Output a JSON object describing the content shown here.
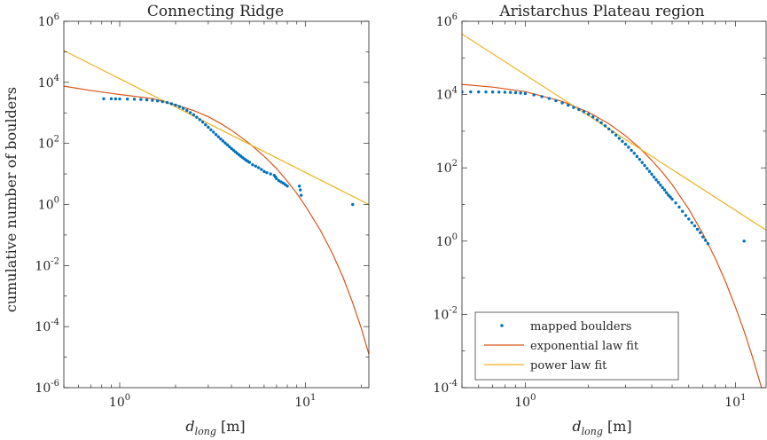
{
  "chart_data": [
    {
      "type": "scatter",
      "title": "Connecting Ridge",
      "xlabel_main": "d",
      "xlabel_sub": "long",
      "xlabel_unit": " [m]",
      "ylabel": "cumulative number of boulders",
      "xscale": "log",
      "yscale": "log",
      "xlim": [
        0.5,
        22
      ],
      "ylim": [
        1e-06,
        1000000.0
      ],
      "x_ticks": [
        {
          "base": "10",
          "exp": "0",
          "value": 1
        },
        {
          "base": "10",
          "exp": "1",
          "value": 10
        }
      ],
      "y_ticks": [
        {
          "base": "10",
          "exp": "6",
          "value": 1000000.0
        },
        {
          "base": "10",
          "exp": "4",
          "value": 10000.0
        },
        {
          "base": "10",
          "exp": "2",
          "value": 100.0
        },
        {
          "base": "10",
          "exp": "0",
          "value": 1
        },
        {
          "base": "10",
          "exp": "-2",
          "value": 0.01
        },
        {
          "base": "10",
          "exp": "-4",
          "value": 0.0001
        },
        {
          "base": "10",
          "exp": "-6",
          "value": 1e-06
        }
      ],
      "legend": false,
      "series": [
        {
          "name": "mapped boulders",
          "type": "scatter",
          "color": "#0072BD",
          "x": [
            0.82,
            0.9,
            0.95,
            1.0,
            1.1,
            1.2,
            1.3,
            1.4,
            1.5,
            1.6,
            1.7,
            1.8,
            1.9,
            2.0,
            2.1,
            2.2,
            2.3,
            2.4,
            2.5,
            2.6,
            2.7,
            2.8,
            2.9,
            3.0,
            3.1,
            3.2,
            3.3,
            3.4,
            3.5,
            3.6,
            3.7,
            3.8,
            3.9,
            4.0,
            4.1,
            4.2,
            4.3,
            4.4,
            4.5,
            4.6,
            4.7,
            4.8,
            4.9,
            5.0,
            5.2,
            5.4,
            5.6,
            5.8,
            6.0,
            6.2,
            6.5,
            6.8,
            6.9,
            7.0,
            7.2,
            7.4,
            7.6,
            7.8,
            8.0,
            9.3,
            9.4,
            9.5,
            18.0
          ],
          "y": [
            2900,
            2900,
            2880,
            2860,
            2840,
            2800,
            2740,
            2670,
            2580,
            2470,
            2330,
            2180,
            2000,
            1800,
            1600,
            1400,
            1200,
            1020,
            860,
            720,
            600,
            500,
            410,
            340,
            280,
            235,
            195,
            165,
            140,
            120,
            103,
            90,
            78,
            68,
            60,
            53,
            47,
            42,
            38,
            34,
            31,
            28,
            26,
            24,
            20,
            18,
            16,
            14,
            12,
            11,
            10,
            9,
            8,
            7,
            6,
            5.5,
            5,
            4.5,
            4,
            4,
            3,
            2,
            1
          ]
        },
        {
          "name": "exponential law fit",
          "type": "line",
          "color": "#D95319",
          "x": [
            0.5,
            0.7,
            1,
            1.5,
            2,
            2.5,
            3,
            3.5,
            4,
            5,
            6,
            7,
            8,
            9,
            10,
            12,
            14,
            16,
            18,
            20,
            22
          ],
          "y": [
            7500,
            5400,
            4000,
            2950,
            1850,
            1200,
            750,
            450,
            270,
            100,
            38,
            15,
            5.8,
            2.3,
            0.9,
            0.15,
            0.025,
            0.004,
            0.0006,
            9e-05,
            1.25e-05
          ]
        },
        {
          "name": "power law fit",
          "type": "line",
          "color": "#EDB120",
          "x": [
            0.5,
            22
          ],
          "y": [
            110000,
            1.0
          ]
        }
      ]
    },
    {
      "type": "scatter",
      "title": "Aristarchus Plateau region",
      "xlabel_main": "d",
      "xlabel_sub": "long",
      "xlabel_unit": " [m]",
      "ylabel": "",
      "xscale": "log",
      "yscale": "log",
      "xlim": [
        0.5,
        14
      ],
      "ylim": [
        0.0001,
        1000000.0
      ],
      "x_ticks": [
        {
          "base": "10",
          "exp": "0",
          "value": 1
        },
        {
          "base": "10",
          "exp": "1",
          "value": 10
        }
      ],
      "y_ticks": [
        {
          "base": "10",
          "exp": "6",
          "value": 1000000.0
        },
        {
          "base": "10",
          "exp": "4",
          "value": 10000.0
        },
        {
          "base": "10",
          "exp": "2",
          "value": 100.0
        },
        {
          "base": "10",
          "exp": "0",
          "value": 1
        },
        {
          "base": "10",
          "exp": "-2",
          "value": 0.01
        },
        {
          "base": "10",
          "exp": "-4",
          "value": 0.0001
        }
      ],
      "legend": true,
      "legend_position": "bottom-left",
      "legend_entries": [
        "mapped boulders",
        "exponential law fit",
        "power law fit"
      ],
      "series": [
        {
          "name": "mapped boulders",
          "type": "scatter",
          "color": "#0072BD",
          "x": [
            0.5,
            0.55,
            0.6,
            0.65,
            0.7,
            0.75,
            0.8,
            0.85,
            0.9,
            0.95,
            1.0,
            1.1,
            1.2,
            1.3,
            1.4,
            1.5,
            1.6,
            1.7,
            1.8,
            1.9,
            2.0,
            2.1,
            2.2,
            2.3,
            2.4,
            2.5,
            2.6,
            2.7,
            2.8,
            2.9,
            3.0,
            3.1,
            3.2,
            3.3,
            3.4,
            3.5,
            3.6,
            3.7,
            3.8,
            3.9,
            4.0,
            4.1,
            4.2,
            4.3,
            4.4,
            4.5,
            4.6,
            4.7,
            4.8,
            4.9,
            5.0,
            5.2,
            5.4,
            5.6,
            5.8,
            6.0,
            6.2,
            6.4,
            6.6,
            6.8,
            7.0,
            7.2,
            7.4,
            11.0
          ],
          "y": [
            11800,
            11800,
            11800,
            11780,
            11750,
            11700,
            11600,
            11450,
            11250,
            11000,
            10600,
            9800,
            8800,
            7800,
            6800,
            5900,
            5100,
            4450,
            3900,
            3400,
            2900,
            2450,
            2050,
            1700,
            1400,
            1150,
            950,
            780,
            640,
            530,
            440,
            365,
            300,
            250,
            205,
            170,
            140,
            116,
            96,
            80,
            67,
            56,
            47,
            40,
            34,
            29,
            25,
            21,
            18,
            16,
            14,
            11,
            8.5,
            6.5,
            5,
            4,
            3.2,
            2.6,
            2.1,
            1.7,
            1.3,
            1.05,
            0.85,
            1
          ]
        },
        {
          "name": "exponential law fit",
          "type": "line",
          "color": "#D95319",
          "x": [
            0.5,
            0.7,
            1,
            1.5,
            2,
            2.5,
            3,
            3.5,
            4,
            4.5,
            5,
            6,
            7,
            8,
            9,
            10,
            11,
            12,
            13,
            14
          ],
          "y": [
            19000,
            16000,
            12000,
            6500,
            3300,
            1600,
            750,
            350,
            160,
            75,
            35,
            7.5,
            1.6,
            0.35,
            0.075,
            0.016,
            0.0035,
            0.00075,
            0.00016,
            3.5e-05
          ]
        },
        {
          "name": "power law fit",
          "type": "line",
          "color": "#EDB120",
          "x": [
            0.5,
            14
          ],
          "y": [
            450000,
            2.0
          ]
        }
      ]
    }
  ]
}
